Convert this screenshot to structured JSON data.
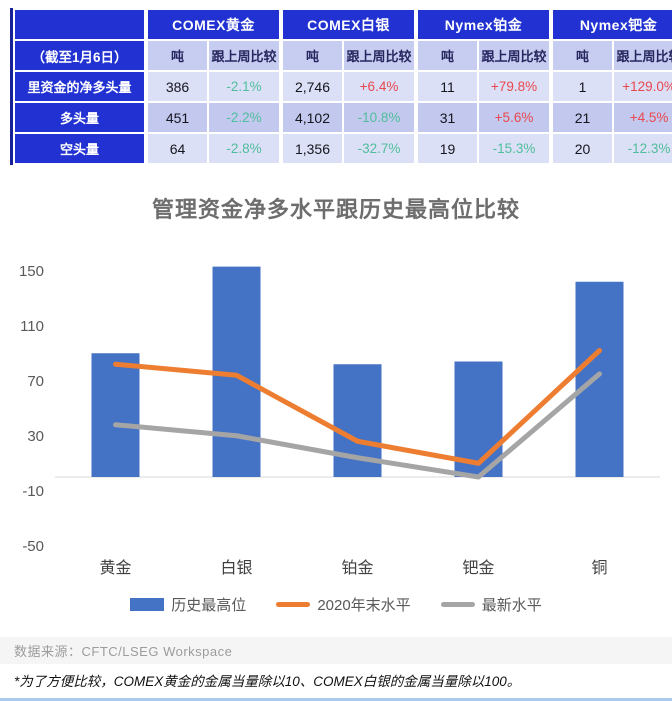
{
  "colors": {
    "header_blue": "#2232D2",
    "row_light": "#DCE0F6",
    "row_dark": "#C3C8EE",
    "subheader_bg": "#C7CCF1",
    "subheader_text": "#26265E",
    "positive_red": "#E8484F",
    "negative_green": "#4FBE9B",
    "bar_blue": "#4472C4",
    "line_orange": "#ED7D31",
    "line_gray": "#A5A5A5",
    "dark_edge": "#18209A",
    "axis_gray": "#D9D9D9",
    "bottom_border": "#AACBEE"
  },
  "table": {
    "groups": [
      {
        "label": "COMEX黄金"
      },
      {
        "label": "COMEX白银"
      },
      {
        "label": "Nymex铂金"
      },
      {
        "label": "Nymex钯金"
      }
    ],
    "subheader": {
      "date_label": "（截至1月6日）",
      "unit_label": "吨",
      "wow_label": "跟上周比较"
    },
    "rows": [
      {
        "label": "里资金的净多头量",
        "cells": [
          {
            "tons": "386",
            "wow": "-2.1%"
          },
          {
            "tons": "2,746",
            "wow": "+6.4%"
          },
          {
            "tons": "11",
            "wow": "+79.8%"
          },
          {
            "tons": "1",
            "wow": "+129.0%"
          }
        ]
      },
      {
        "label": "多头量",
        "cells": [
          {
            "tons": "451",
            "wow": "-2.2%"
          },
          {
            "tons": "4,102",
            "wow": "-10.8%"
          },
          {
            "tons": "31",
            "wow": "+5.6%"
          },
          {
            "tons": "21",
            "wow": "+4.5%"
          }
        ]
      },
      {
        "label": "空头量",
        "cells": [
          {
            "tons": "64",
            "wow": "-2.8%"
          },
          {
            "tons": "1,356",
            "wow": "-32.7%"
          },
          {
            "tons": "19",
            "wow": "-15.3%"
          },
          {
            "tons": "20",
            "wow": "-12.3%"
          }
        ]
      }
    ]
  },
  "chart_data": {
    "type": "bar+line",
    "title": "管理资金净多水平跟历史最高位比较",
    "categories": [
      "黄金",
      "白银",
      "铂金",
      "钯金",
      "铜"
    ],
    "series": [
      {
        "name": "历史最高位",
        "type": "bar",
        "color": "#4472C4",
        "values": [
          90,
          153,
          82,
          84,
          142
        ]
      },
      {
        "name": "2020年末水平",
        "type": "line",
        "color": "#ED7D31",
        "values": [
          82,
          74,
          26,
          10,
          92
        ]
      },
      {
        "name": "最新水平",
        "type": "line",
        "color": "#A5A5A5",
        "values": [
          38,
          30,
          14,
          0,
          75
        ]
      }
    ],
    "yticks": [
      150,
      110,
      70,
      30,
      -10,
      -50
    ],
    "ylim": [
      -60,
      165
    ],
    "xlabel": "",
    "ylabel": "",
    "grid": false,
    "legend_position": "bottom"
  },
  "footer": {
    "source": "数据来源：CFTC/LSEG Workspace",
    "footnote": "*为了方便比较，COMEX黄金的金属当量除以10、COMEX白银的金属当量除以100。"
  }
}
